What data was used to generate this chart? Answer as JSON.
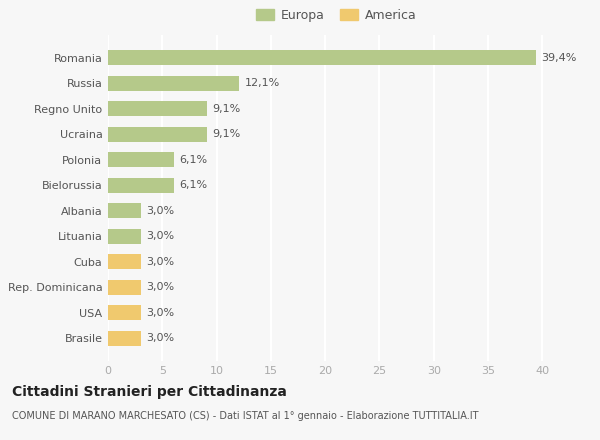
{
  "categories": [
    "Brasile",
    "USA",
    "Rep. Dominicana",
    "Cuba",
    "Lituania",
    "Albania",
    "Bielorussia",
    "Polonia",
    "Ucraina",
    "Regno Unito",
    "Russia",
    "Romania"
  ],
  "values": [
    3.0,
    3.0,
    3.0,
    3.0,
    3.0,
    3.0,
    6.1,
    6.1,
    9.1,
    9.1,
    12.1,
    39.4
  ],
  "colors": [
    "#f0c96e",
    "#f0c96e",
    "#f0c96e",
    "#f0c96e",
    "#b5c98a",
    "#b5c98a",
    "#b5c98a",
    "#b5c98a",
    "#b5c98a",
    "#b5c98a",
    "#b5c98a",
    "#b5c98a"
  ],
  "labels": [
    "3,0%",
    "3,0%",
    "3,0%",
    "3,0%",
    "3,0%",
    "3,0%",
    "6,1%",
    "6,1%",
    "9,1%",
    "9,1%",
    "12,1%",
    "39,4%"
  ],
  "europa_color": "#b5c98a",
  "america_color": "#f0c96e",
  "background_color": "#f7f7f7",
  "title": "Cittadini Stranieri per Cittadinanza",
  "subtitle": "COMUNE DI MARANO MARCHESATO (CS) - Dati ISTAT al 1° gennaio - Elaborazione TUTTITALIA.IT",
  "xlim": [
    0,
    42
  ],
  "xticks": [
    0,
    5,
    10,
    15,
    20,
    25,
    30,
    35,
    40
  ],
  "label_color": "#555555",
  "tick_color": "#aaaaaa",
  "grid_color": "#ffffff",
  "bar_height": 0.6
}
